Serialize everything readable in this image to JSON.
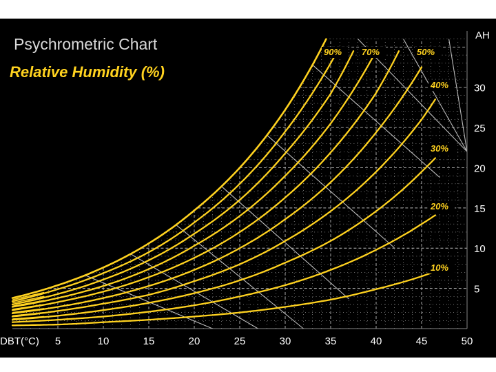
{
  "chart_data": {
    "type": "line",
    "title": "Psychrometric Chart",
    "subtitle": "Relative Humidity (%)",
    "xlabel": "DBT(°C)",
    "ylabel": "AH",
    "xlim": [
      0,
      50
    ],
    "ylim": [
      0,
      37
    ],
    "x_ticks": [
      5,
      10,
      15,
      20,
      25,
      30,
      35,
      40,
      45,
      50
    ],
    "y_ticks": [
      5,
      10,
      15,
      20,
      25,
      30
    ],
    "grid": true,
    "line_color": "#ffd21f",
    "grid_color": "#bbbbbb",
    "rh_labels": [
      {
        "text": "90%",
        "rh": 90
      },
      {
        "text": "70%",
        "rh": 70
      },
      {
        "text": "50%",
        "rh": 50
      },
      {
        "text": "40%",
        "rh": 40
      },
      {
        "text": "30%",
        "rh": 30
      },
      {
        "text": "20%",
        "rh": 20
      },
      {
        "text": "10%",
        "rh": 10
      }
    ],
    "series": [
      {
        "rh": 100,
        "x": [
          0,
          5,
          10,
          15,
          20,
          25,
          30,
          34.5
        ],
        "values": [
          3.8,
          5.4,
          7.6,
          10.6,
          14.7,
          20.0,
          27.2,
          36.0
        ]
      },
      {
        "rh": 90,
        "x": [
          0,
          5,
          10,
          15,
          20,
          25,
          30,
          35.5
        ],
        "values": [
          3.4,
          4.9,
          6.9,
          9.5,
          13.2,
          18.0,
          24.5,
          34.0
        ]
      },
      {
        "rh": 80,
        "x": [
          0,
          5,
          10,
          15,
          20,
          25,
          30,
          35,
          37.5
        ],
        "values": [
          3.0,
          4.3,
          6.1,
          8.5,
          11.8,
          16.0,
          21.8,
          29.2,
          34.5
        ]
      },
      {
        "rh": 70,
        "x": [
          0,
          5,
          10,
          15,
          20,
          25,
          30,
          35,
          40
        ],
        "values": [
          2.7,
          3.8,
          5.3,
          7.4,
          10.3,
          14.0,
          19.0,
          25.5,
          34.5
        ]
      },
      {
        "rh": 60,
        "x": [
          0,
          5,
          10,
          15,
          20,
          25,
          30,
          35,
          40,
          42.5
        ],
        "values": [
          2.3,
          3.3,
          4.6,
          6.4,
          8.8,
          12.0,
          16.3,
          21.9,
          29.3,
          34.5
        ]
      },
      {
        "rh": 50,
        "x": [
          0,
          5,
          10,
          15,
          20,
          25,
          30,
          35,
          40,
          45
        ],
        "values": [
          1.9,
          2.7,
          3.8,
          5.3,
          7.3,
          10.0,
          13.6,
          18.2,
          24.4,
          32.5
        ]
      },
      {
        "rh": 40,
        "x": [
          0,
          5,
          10,
          15,
          20,
          25,
          30,
          35,
          40,
          45,
          46.5
        ],
        "values": [
          1.5,
          2.2,
          3.1,
          4.2,
          5.9,
          8.0,
          10.9,
          14.6,
          19.5,
          26.0,
          28.5
        ]
      },
      {
        "rh": 30,
        "x": [
          0,
          5,
          10,
          15,
          20,
          25,
          30,
          35,
          40,
          45,
          46.5
        ],
        "values": [
          1.1,
          1.6,
          2.3,
          3.2,
          4.4,
          6.0,
          8.2,
          10.9,
          14.6,
          19.5,
          21.2
        ]
      },
      {
        "rh": 20,
        "x": [
          0,
          5,
          10,
          15,
          20,
          25,
          30,
          35,
          40,
          45,
          46.5
        ],
        "values": [
          0.8,
          1.1,
          1.5,
          2.1,
          2.9,
          4.0,
          5.4,
          7.3,
          9.8,
          13.0,
          14.1
        ]
      },
      {
        "rh": 10,
        "x": [
          0,
          5,
          10,
          15,
          20,
          25,
          30,
          35,
          40,
          45,
          46.5
        ],
        "values": [
          0.4,
          0.5,
          0.8,
          1.1,
          1.5,
          2.0,
          2.7,
          3.6,
          4.9,
          6.5,
          7.1
        ]
      }
    ]
  }
}
